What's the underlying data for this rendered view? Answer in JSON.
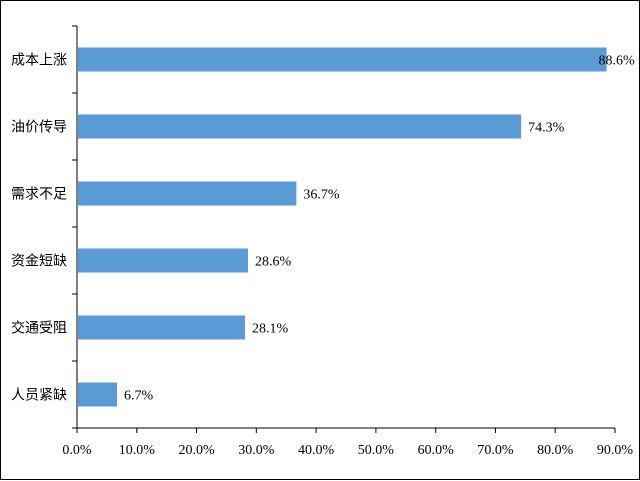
{
  "chart_data": {
    "type": "bar",
    "orientation": "horizontal",
    "title": "",
    "xlabel": "",
    "ylabel": "",
    "categories": [
      "成本上涨",
      "油价传导",
      "需求不足",
      "资金短缺",
      "交通受阻",
      "人员紧缺"
    ],
    "values": [
      88.6,
      74.3,
      36.7,
      28.6,
      28.1,
      6.7
    ],
    "data_labels": [
      "88.6%",
      "74.3%",
      "36.7%",
      "28.6%",
      "28.1%",
      "6.7%"
    ],
    "xlim": [
      0,
      90
    ],
    "x_ticks": [
      0,
      10,
      20,
      30,
      40,
      50,
      60,
      70,
      80,
      90
    ],
    "x_tick_labels": [
      "0.0%",
      "10.0%",
      "20.0%",
      "30.0%",
      "40.0%",
      "50.0%",
      "60.0%",
      "70.0%",
      "80.0%",
      "90.0%"
    ],
    "grid": false,
    "legend": "none",
    "bar_color": "#5B9BD5",
    "axis_color": "#000000"
  }
}
